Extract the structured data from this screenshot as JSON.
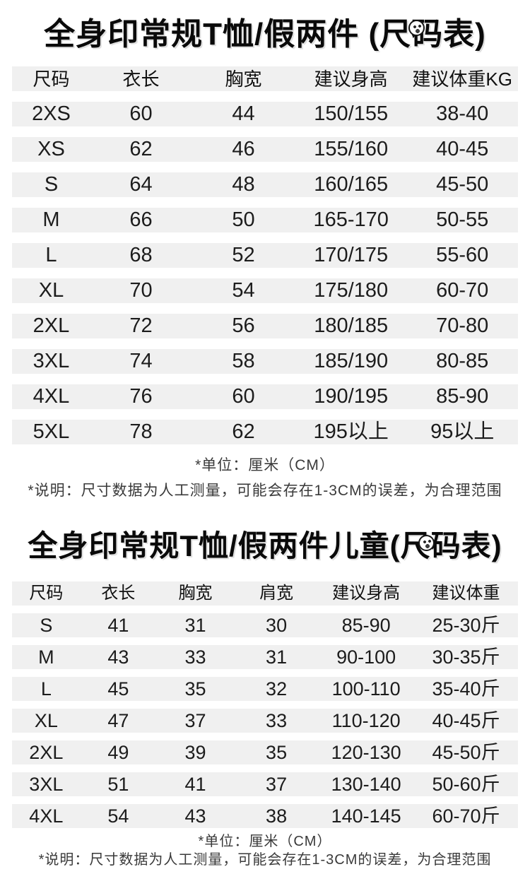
{
  "colors": {
    "background": "#ffffff",
    "row_stripe": "#f0f0f0",
    "text": "#1a1a1a",
    "note_text": "#3a3a3a"
  },
  "icons": {
    "title_badge": "scribble-circle-watermark-icon"
  },
  "adult": {
    "title": "全身印常规T恤/假两件 (尺码表)",
    "table": {
      "headers": [
        "尺码",
        "衣长",
        "胸宽",
        "建议身高",
        "建议体重KG"
      ],
      "rows": [
        [
          "2XS",
          "60",
          "44",
          "150/155",
          "38-40"
        ],
        [
          "XS",
          "62",
          "46",
          "155/160",
          "40-45"
        ],
        [
          "S",
          "64",
          "48",
          "160/165",
          "45-50"
        ],
        [
          "M",
          "66",
          "50",
          "165-170",
          "50-55"
        ],
        [
          "L",
          "68",
          "52",
          "170/175",
          "55-60"
        ],
        [
          "XL",
          "70",
          "54",
          "175/180",
          "60-70"
        ],
        [
          "2XL",
          "72",
          "56",
          "180/185",
          "70-80"
        ],
        [
          "3XL",
          "74",
          "58",
          "185/190",
          "80-85"
        ],
        [
          "4XL",
          "76",
          "60",
          "190/195",
          "85-90"
        ],
        [
          "5XL",
          "78",
          "62",
          "195以上",
          "95以上"
        ]
      ]
    },
    "unit_note": "*单位：厘米（CM）",
    "disclaimer": "*说明：尺寸数据为人工测量，可能会存在1-3CM的误差，为合理范围"
  },
  "kids": {
    "title": "全身印常规T恤/假两件儿童(尺码表)",
    "table": {
      "headers": [
        "尺码",
        "衣长",
        "胸宽",
        "肩宽",
        "建议身高",
        "建议体重"
      ],
      "rows": [
        [
          "S",
          "41",
          "31",
          "30",
          "85-90",
          "25-30斤"
        ],
        [
          "M",
          "43",
          "33",
          "31",
          "90-100",
          "30-35斤"
        ],
        [
          "L",
          "45",
          "35",
          "32",
          "100-110",
          "35-40斤"
        ],
        [
          "XL",
          "47",
          "37",
          "33",
          "110-120",
          "40-45斤"
        ],
        [
          "2XL",
          "49",
          "39",
          "35",
          "120-130",
          "45-50斤"
        ],
        [
          "3XL",
          "51",
          "41",
          "37",
          "130-140",
          "50-60斤"
        ],
        [
          "4XL",
          "54",
          "43",
          "38",
          "140-145",
          "60-70斤"
        ]
      ]
    },
    "unit_note": "*单位：厘米（CM）",
    "disclaimer": "*说明：尺寸数据为人工测量，可能会存在1-3CM的误差，为合理范围"
  }
}
